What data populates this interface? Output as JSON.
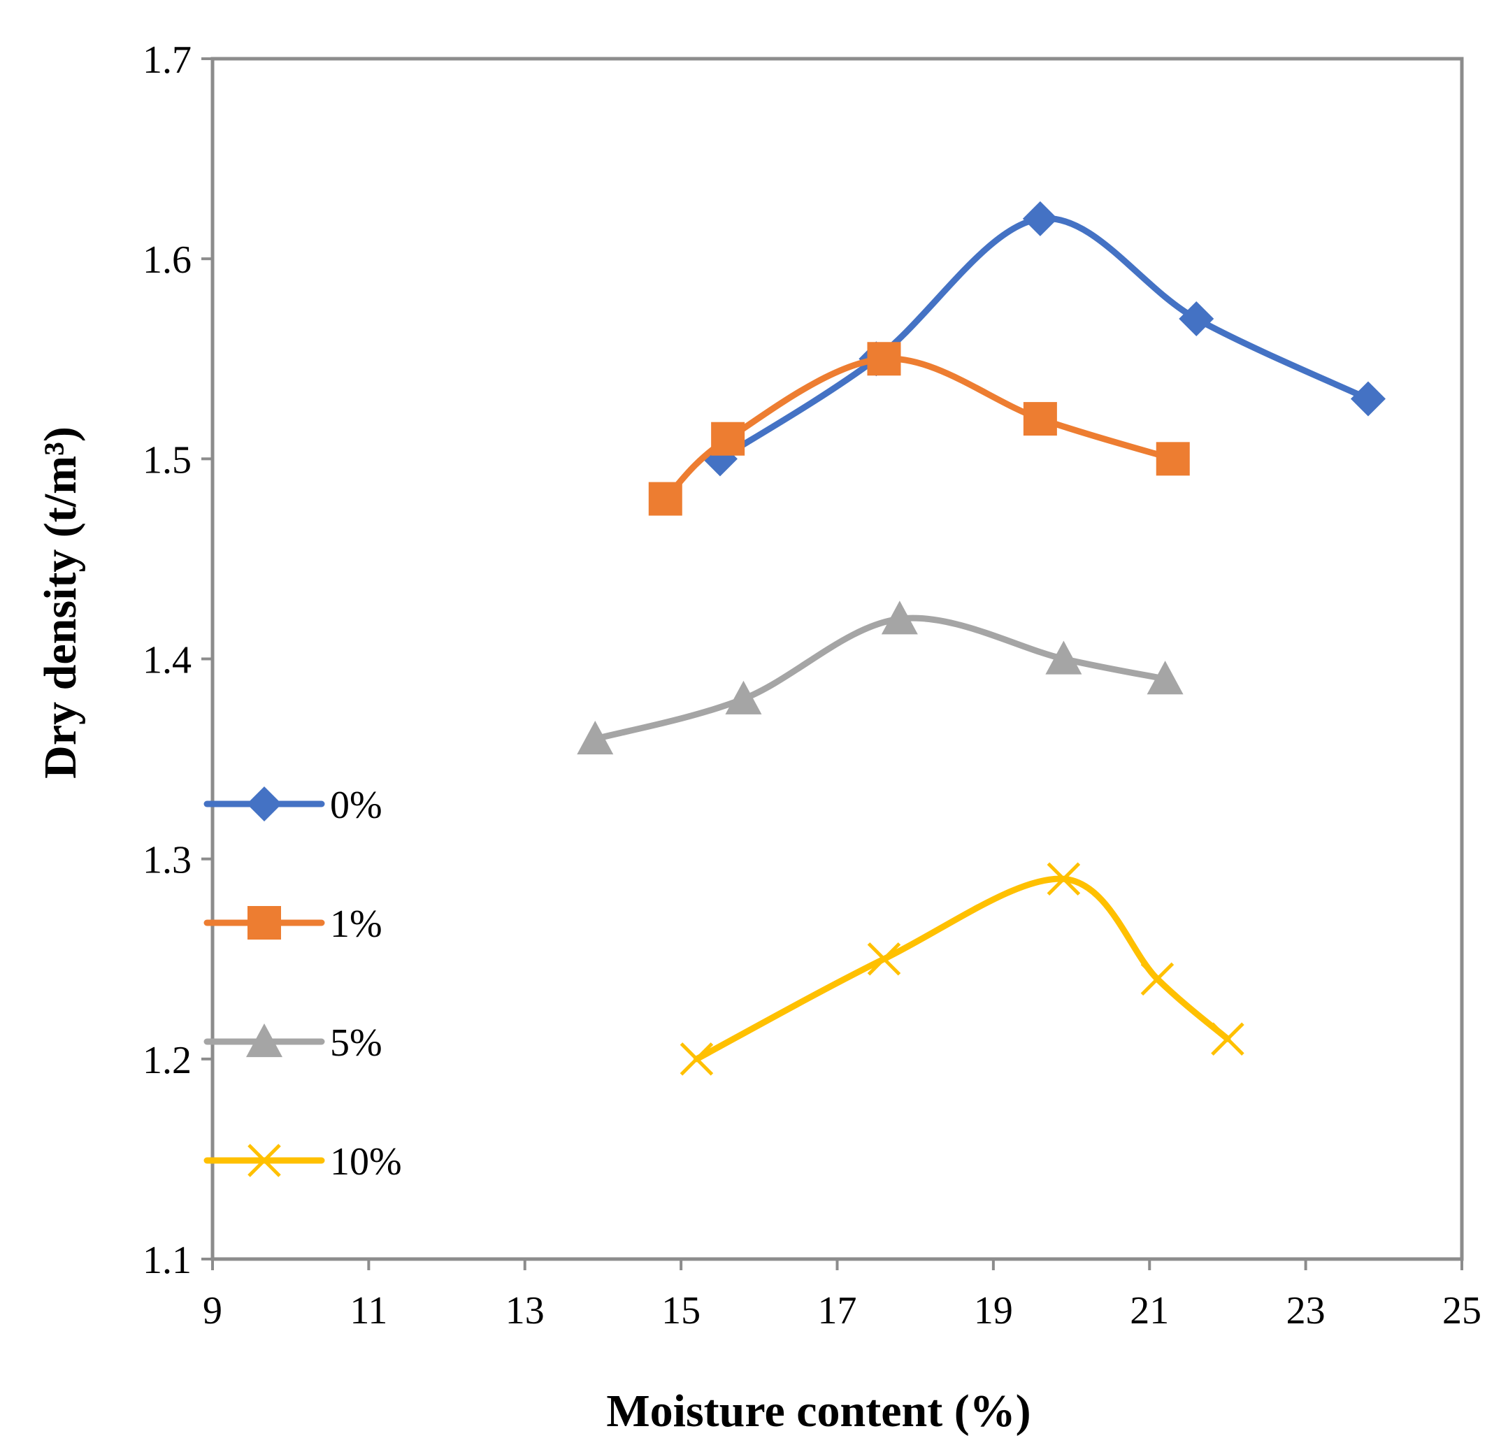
{
  "chart_data": {
    "type": "line",
    "title": "",
    "xlabel": "Moisture content (%)",
    "ylabel": "Dry density (t/m³)",
    "xlim": [
      9,
      25
    ],
    "ylim": [
      1.1,
      1.7
    ],
    "xticks": [
      9,
      11,
      13,
      15,
      17,
      19,
      21,
      23,
      25
    ],
    "yticks": [
      1.1,
      1.2,
      1.3,
      1.4,
      1.5,
      1.6,
      1.7
    ],
    "xtick_labels": [
      "9",
      "11",
      "13",
      "15",
      "17",
      "19",
      "21",
      "23",
      "25"
    ],
    "ytick_labels": [
      "1.1",
      "1.2",
      "1.3",
      "1.4",
      "1.5",
      "1.6",
      "1.7"
    ],
    "grid": false,
    "smooth": true,
    "legend_position": "left-inside",
    "series": [
      {
        "name": "0%",
        "marker": "diamond",
        "color": "#4472C4",
        "x": [
          15.5,
          17.5,
          19.6,
          21.6,
          23.8
        ],
        "y": [
          1.5,
          1.55,
          1.62,
          1.57,
          1.53
        ]
      },
      {
        "name": "1%",
        "marker": "square",
        "color": "#ED7D31",
        "x": [
          14.8,
          15.6,
          17.6,
          19.6,
          21.3
        ],
        "y": [
          1.48,
          1.51,
          1.55,
          1.52,
          1.5
        ]
      },
      {
        "name": "5%",
        "marker": "triangle",
        "color": "#A5A5A5",
        "x": [
          13.9,
          15.8,
          17.8,
          19.9,
          21.2
        ],
        "y": [
          1.36,
          1.38,
          1.42,
          1.4,
          1.39
        ]
      },
      {
        "name": "10%",
        "marker": "x",
        "color": "#FFC000",
        "x": [
          15.2,
          17.6,
          19.9,
          21.1,
          22.0
        ],
        "y": [
          1.2,
          1.25,
          1.29,
          1.24,
          1.21
        ]
      }
    ]
  }
}
